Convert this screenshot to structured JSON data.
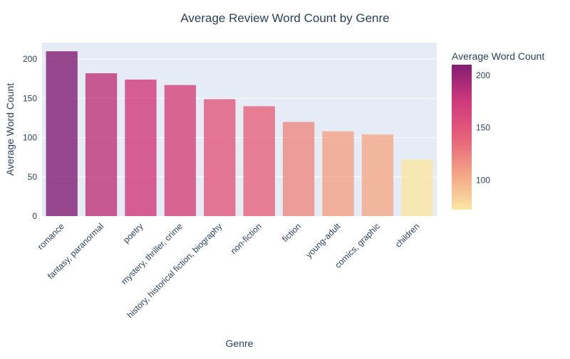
{
  "chart_data": {
    "type": "bar",
    "title": "Average Review Word Count by Genre",
    "xlabel": "Genre",
    "ylabel": "Average Word Count",
    "categories": [
      "romance",
      "fantasy, paranormal",
      "poetry",
      "mystery, thriller, crime",
      "history, historical fiction, biography",
      "non-fiction",
      "fiction",
      "young-adult",
      "comics, graphic",
      "children"
    ],
    "values": [
      210,
      182,
      174,
      167,
      149,
      140,
      120,
      108,
      104,
      72
    ],
    "ylim": [
      0,
      221
    ],
    "yticks": [
      0,
      50,
      100,
      150,
      200
    ],
    "grid": true,
    "plot_background": "#e5ecf6",
    "colorscale": "Magenta",
    "colorscale_stops": [
      "#f3e79b",
      "#fac484",
      "#f8a07e",
      "#eb7f86",
      "#ce6693",
      "#a059a0",
      "#5c53a5"
    ],
    "colorbar": {
      "title": "Average Word Count",
      "range": [
        72,
        210
      ],
      "ticks": [
        100,
        150,
        200
      ]
    },
    "bar_opacity": 0.8
  }
}
